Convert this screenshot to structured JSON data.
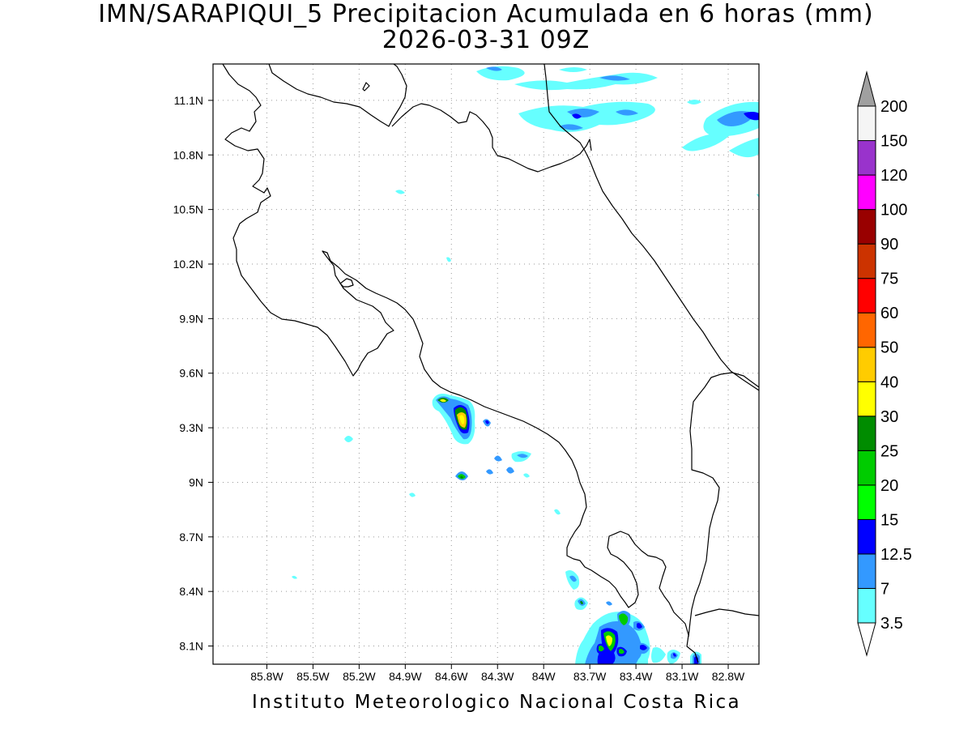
{
  "title": {
    "line1": "IMN/SARAPIQUI_5 Precipitacion Acumulada en 6 horas (mm)",
    "line2": "2026-03-31 09Z"
  },
  "footer": "Instituto Meteorologico Nacional Costa Rica",
  "map": {
    "lon_range": [
      -86.15,
      -82.6
    ],
    "lat_range": [
      8.0,
      11.3
    ],
    "lon_ticks": [
      "85.8W",
      "85.5W",
      "85.2W",
      "84.9W",
      "84.6W",
      "84.3W",
      "84W",
      "83.7W",
      "83.4W",
      "83.1W",
      "82.8W"
    ],
    "lat_ticks": [
      "11.1N",
      "10.8N",
      "10.5N",
      "10.2N",
      "9.9N",
      "9.6N",
      "9.3N",
      "9N",
      "8.7N",
      "8.4N",
      "8.1N"
    ],
    "grid": "dotted"
  },
  "colorbar": {
    "unit": "mm",
    "labels": [
      "3.5",
      "7",
      "12.5",
      "15",
      "20",
      "25",
      "30",
      "40",
      "50",
      "60",
      "75",
      "90",
      "100",
      "120",
      "150",
      "200"
    ],
    "colors": [
      "#66ffff",
      "#3399ff",
      "#0000ff",
      "#00ff00",
      "#00cc00",
      "#008c00",
      "#ffff00",
      "#ffcc00",
      "#ff6600",
      "#ff0000",
      "#cc3300",
      "#990000",
      "#ff00ff",
      "#9933cc",
      "#f5f5f5",
      "#a0a0a0"
    ]
  }
}
